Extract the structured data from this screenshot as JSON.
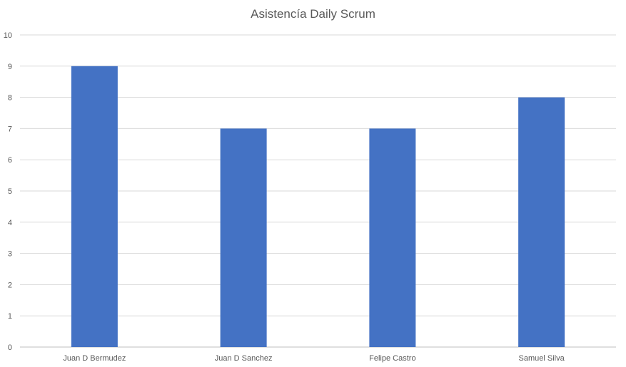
{
  "chart_data": {
    "type": "bar",
    "title": "Asistencía Daily Scrum",
    "xlabel": "",
    "ylabel": "",
    "categories": [
      "Juan D Bermudez",
      "Juan D Sanchez",
      "Felipe Castro",
      "Samuel Silva"
    ],
    "series": [
      {
        "values": [
          9,
          7,
          7,
          8
        ]
      }
    ],
    "ylim": [
      0,
      10
    ],
    "yticks": [
      0,
      1,
      2,
      3,
      4,
      5,
      6,
      7,
      8,
      9,
      10
    ],
    "grid": true,
    "legend": "none",
    "colors": {
      "bar": "#4472C4",
      "grid": "#d9d9d9",
      "axis": "#bfbfbf"
    }
  }
}
